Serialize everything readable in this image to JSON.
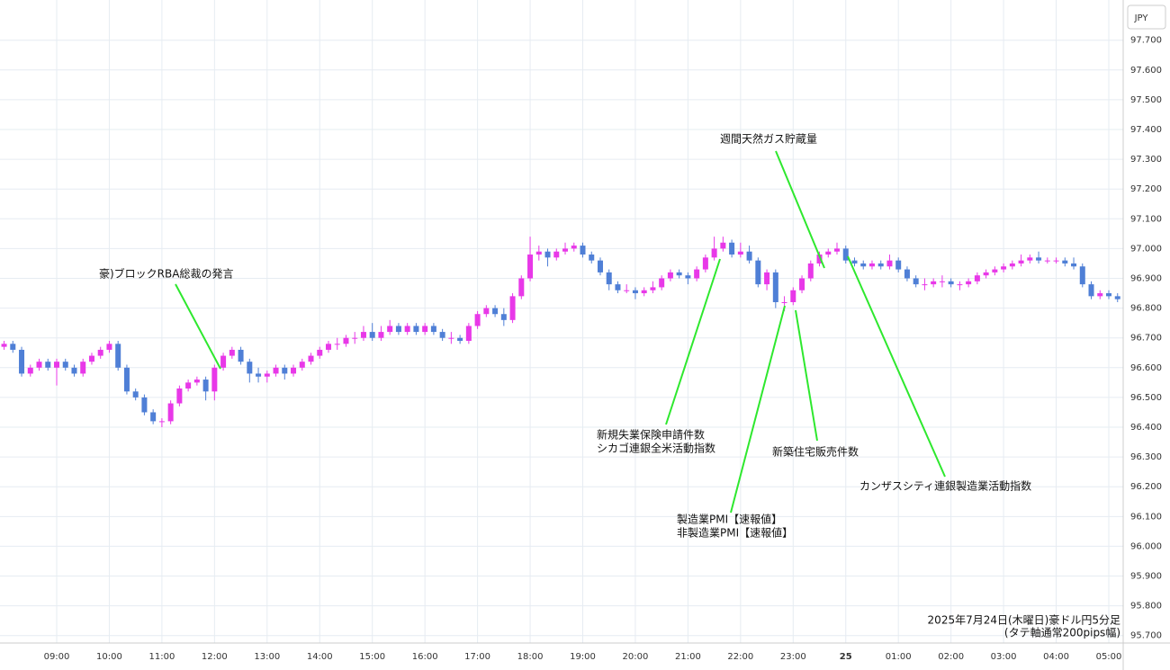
{
  "chart_data": {
    "type": "candlestick",
    "currency": "JPY",
    "categories": [
      null,
      null,
      null,
      null,
      null,
      null,
      "09:00",
      null,
      null,
      null,
      null,
      null,
      "10:00",
      null,
      null,
      null,
      null,
      null,
      "11:00",
      null,
      null,
      null,
      null,
      null,
      "12:00",
      null,
      null,
      null,
      null,
      null,
      "13:00",
      null,
      null,
      null,
      null,
      null,
      "14:00",
      null,
      null,
      null,
      null,
      null,
      "15:00",
      null,
      null,
      null,
      null,
      null,
      "16:00",
      null,
      null,
      null,
      null,
      null,
      "17:00",
      null,
      null,
      null,
      null,
      null,
      "18:00",
      null,
      null,
      null,
      null,
      null,
      "19:00",
      null,
      null,
      null,
      null,
      null,
      "20:00",
      null,
      null,
      null,
      null,
      null,
      "21:00",
      null,
      null,
      null,
      null,
      null,
      "22:00",
      null,
      null,
      null,
      null,
      null,
      "23:00",
      null,
      null,
      null,
      null,
      null,
      "25",
      null,
      null,
      null,
      null,
      null,
      "01:00",
      null,
      null,
      null,
      null,
      null,
      "02:00",
      null,
      null,
      null,
      null,
      null,
      "03:00",
      null,
      null,
      null,
      null,
      null,
      "04:00",
      null,
      null,
      null,
      null,
      null,
      "05:00",
      null
    ],
    "series": [
      {
        "up_color": "#e838e8",
        "down_color": "#4f7fd6",
        "open": [
          96.67,
          96.68,
          96.66,
          96.58,
          96.6,
          96.62,
          96.6,
          96.62,
          96.6,
          96.58,
          96.62,
          96.64,
          96.66,
          96.68,
          96.6,
          96.52,
          96.5,
          96.45,
          96.42,
          96.42,
          96.48,
          96.53,
          96.55,
          96.56,
          96.52,
          96.6,
          96.64,
          96.66,
          96.62,
          96.58,
          96.57,
          96.58,
          96.6,
          96.58,
          96.6,
          96.62,
          96.64,
          96.66,
          96.68,
          96.68,
          96.7,
          96.7,
          96.72,
          96.7,
          96.72,
          96.74,
          96.72,
          96.74,
          96.72,
          96.74,
          96.72,
          96.7,
          96.7,
          96.69,
          96.74,
          96.78,
          96.8,
          96.78,
          96.76,
          96.84,
          96.9,
          96.98,
          96.99,
          96.97,
          96.99,
          97.0,
          97.01,
          96.98,
          96.96,
          96.92,
          96.88,
          96.86,
          96.86,
          96.85,
          96.86,
          96.87,
          96.9,
          96.92,
          96.91,
          96.9,
          96.93,
          96.97,
          97.0,
          97.02,
          96.98,
          96.99,
          96.96,
          96.88,
          96.92,
          96.82,
          96.82,
          96.86,
          96.9,
          96.95,
          96.98,
          96.99,
          97.0,
          96.96,
          96.95,
          96.94,
          96.95,
          96.94,
          96.96,
          96.93,
          96.9,
          96.88,
          96.88,
          96.89,
          96.89,
          96.88,
          96.88,
          96.89,
          96.91,
          96.92,
          96.93,
          96.94,
          96.95,
          96.96,
          96.97,
          96.96,
          96.96,
          96.96,
          96.95,
          96.94,
          96.88,
          96.84,
          96.85,
          96.84
        ],
        "high": [
          96.69,
          96.69,
          96.67,
          96.61,
          96.63,
          96.63,
          96.63,
          96.63,
          96.61,
          96.63,
          96.65,
          96.67,
          96.69,
          96.69,
          96.61,
          96.53,
          96.51,
          96.46,
          96.43,
          96.49,
          96.54,
          96.56,
          96.57,
          96.57,
          96.61,
          96.65,
          96.67,
          96.67,
          96.63,
          96.6,
          96.59,
          96.61,
          96.61,
          96.61,
          96.63,
          96.65,
          96.67,
          96.69,
          96.7,
          96.71,
          96.72,
          96.74,
          96.75,
          96.74,
          96.76,
          96.75,
          96.75,
          96.75,
          96.75,
          96.75,
          96.73,
          96.72,
          96.71,
          96.75,
          96.79,
          96.81,
          96.81,
          96.8,
          96.85,
          96.91,
          97.04,
          97.01,
          97.0,
          97.0,
          97.02,
          97.02,
          97.02,
          96.99,
          96.97,
          96.93,
          96.89,
          96.88,
          96.87,
          96.87,
          96.89,
          96.91,
          96.93,
          96.93,
          96.92,
          96.94,
          96.98,
          97.04,
          97.04,
          97.03,
          97.02,
          97.01,
          96.97,
          96.93,
          96.93,
          96.84,
          96.87,
          96.91,
          96.96,
          96.99,
          97.0,
          97.02,
          97.01,
          96.97,
          96.96,
          96.96,
          96.96,
          96.98,
          96.97,
          96.94,
          96.91,
          96.9,
          96.9,
          96.91,
          96.9,
          96.89,
          96.9,
          96.92,
          96.93,
          96.94,
          96.95,
          96.96,
          96.98,
          96.98,
          96.99,
          96.97,
          96.97,
          96.97,
          96.97,
          96.95,
          96.89,
          96.86,
          96.86,
          96.85
        ],
        "low": [
          96.66,
          96.65,
          96.57,
          96.57,
          96.59,
          96.59,
          96.54,
          96.59,
          96.57,
          96.57,
          96.61,
          96.63,
          96.65,
          96.59,
          96.51,
          96.49,
          96.44,
          96.41,
          96.4,
          96.41,
          96.47,
          96.52,
          96.54,
          96.49,
          96.49,
          96.59,
          96.63,
          96.61,
          96.55,
          96.55,
          96.55,
          96.57,
          96.56,
          96.57,
          96.59,
          96.61,
          96.63,
          96.65,
          96.66,
          96.67,
          96.68,
          96.69,
          96.69,
          96.69,
          96.71,
          96.71,
          96.71,
          96.71,
          96.71,
          96.71,
          96.69,
          96.68,
          96.68,
          96.68,
          96.73,
          96.77,
          96.77,
          96.74,
          96.75,
          96.83,
          96.89,
          96.96,
          96.94,
          96.96,
          96.98,
          96.99,
          96.97,
          96.95,
          96.91,
          96.86,
          96.85,
          96.85,
          96.83,
          96.84,
          96.85,
          96.86,
          96.89,
          96.9,
          96.88,
          96.89,
          96.92,
          96.96,
          96.99,
          96.97,
          96.97,
          96.95,
          96.87,
          96.86,
          96.8,
          96.79,
          96.81,
          96.85,
          96.89,
          96.94,
          96.97,
          96.98,
          96.95,
          96.94,
          96.93,
          96.93,
          96.93,
          96.93,
          96.92,
          96.89,
          96.87,
          96.86,
          96.87,
          96.87,
          96.87,
          96.86,
          96.87,
          96.88,
          96.9,
          96.91,
          96.92,
          96.93,
          96.94,
          96.95,
          96.95,
          96.95,
          96.95,
          96.94,
          96.93,
          96.87,
          96.83,
          96.83,
          96.83,
          96.82
        ],
        "close": [
          96.68,
          96.66,
          96.58,
          96.6,
          96.62,
          96.6,
          96.62,
          96.6,
          96.58,
          96.62,
          96.64,
          96.66,
          96.68,
          96.6,
          96.52,
          96.5,
          96.45,
          96.42,
          96.42,
          96.48,
          96.53,
          96.55,
          96.56,
          96.52,
          96.6,
          96.64,
          96.66,
          96.62,
          96.58,
          96.57,
          96.58,
          96.6,
          96.58,
          96.6,
          96.62,
          96.64,
          96.66,
          96.68,
          96.68,
          96.7,
          96.7,
          96.72,
          96.7,
          96.72,
          96.74,
          96.72,
          96.74,
          96.72,
          96.74,
          96.72,
          96.7,
          96.7,
          96.69,
          96.74,
          96.78,
          96.8,
          96.78,
          96.76,
          96.84,
          96.9,
          96.98,
          96.99,
          96.97,
          96.99,
          97.0,
          97.01,
          96.98,
          96.96,
          96.92,
          96.88,
          96.86,
          96.86,
          96.85,
          96.86,
          96.87,
          96.9,
          96.92,
          96.91,
          96.9,
          96.93,
          96.97,
          97.0,
          97.02,
          96.98,
          96.99,
          96.96,
          96.88,
          96.92,
          96.82,
          96.82,
          96.86,
          96.9,
          96.95,
          96.98,
          96.99,
          97.0,
          96.96,
          96.95,
          96.94,
          96.95,
          96.94,
          96.96,
          96.93,
          96.9,
          96.88,
          96.88,
          96.89,
          96.89,
          96.88,
          96.88,
          96.89,
          96.91,
          96.92,
          96.93,
          96.94,
          96.95,
          96.96,
          96.97,
          96.96,
          96.96,
          96.96,
          96.95,
          96.94,
          96.88,
          96.84,
          96.85,
          96.84,
          96.83
        ]
      }
    ],
    "ylim": [
      95.675,
      97.835
    ],
    "yticks": [
      {
        "value": 95.7,
        "label": "95.700"
      },
      {
        "value": 95.8,
        "label": "95.800"
      },
      {
        "value": 95.9,
        "label": "95.900"
      },
      {
        "value": 96.0,
        "label": "96.000"
      },
      {
        "value": 96.1,
        "label": "96.100"
      },
      {
        "value": 96.2,
        "label": "96.200"
      },
      {
        "value": 96.3,
        "label": "96.300"
      },
      {
        "value": 96.4,
        "label": "96.400"
      },
      {
        "value": 96.5,
        "label": "96.500"
      },
      {
        "value": 96.6,
        "label": "96.600"
      },
      {
        "value": 96.7,
        "label": "96.700"
      },
      {
        "value": 96.8,
        "label": "96.800"
      },
      {
        "value": 96.9,
        "label": "96.900"
      },
      {
        "value": 97.0,
        "label": "97.000"
      },
      {
        "value": 97.1,
        "label": "97.100"
      },
      {
        "value": 97.2,
        "label": "97.200"
      },
      {
        "value": 97.3,
        "label": "97.300"
      },
      {
        "value": 97.4,
        "label": "97.400"
      },
      {
        "value": 97.5,
        "label": "97.500"
      },
      {
        "value": 97.6,
        "label": "97.600"
      },
      {
        "value": 97.7,
        "label": "97.700"
      }
    ],
    "grid": true,
    "annotations": [
      {
        "lines": [
          "豪)ブロックRBA総裁の発言"
        ]
      },
      {
        "lines": [
          "週間天然ガス貯蔵量"
        ]
      },
      {
        "lines": [
          "新規失業保険申請件数",
          "シカゴ連銀全米活動指数"
        ]
      },
      {
        "lines": [
          "製造業PMI【速報値】",
          "非製造業PMI【速報値】"
        ]
      },
      {
        "lines": [
          "新築住宅販売件数"
        ]
      },
      {
        "lines": [
          "カンザスシティ連銀製造業活動指数"
        ]
      }
    ],
    "caption": [
      "2025年7月24日(木曜日)豪ドル円5分足",
      "(タテ軸通常200pips幅)"
    ]
  }
}
